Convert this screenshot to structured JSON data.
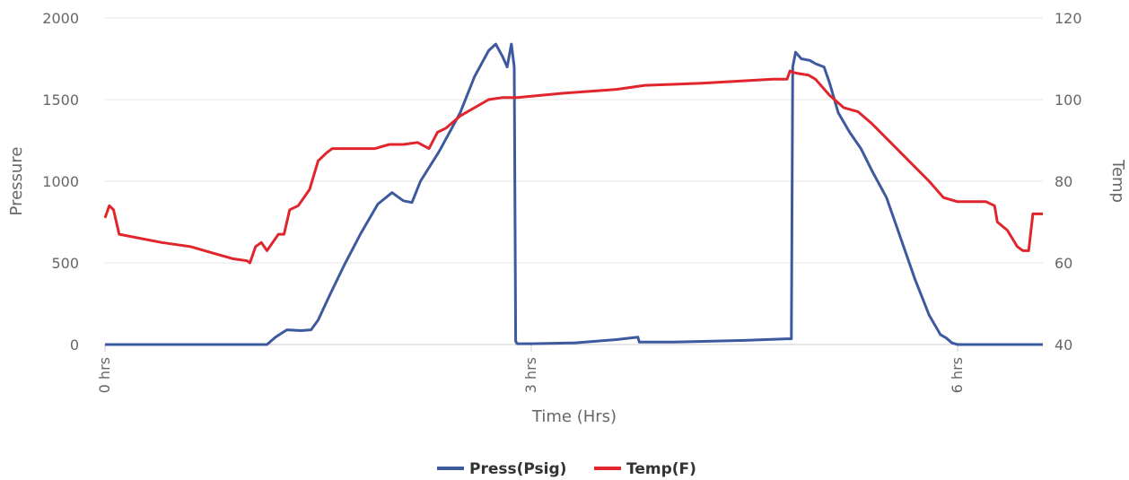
{
  "chart_data": {
    "type": "line",
    "title": "",
    "xlabel": "Time (Hrs)",
    "ylabel_left": "Pressure",
    "ylabel_right": "Temp",
    "xlim": [
      0,
      6.6
    ],
    "ylim_left": [
      0,
      2000
    ],
    "ylim_right": [
      40,
      120
    ],
    "x_ticks": [
      {
        "value": 0,
        "label": "0 hrs"
      },
      {
        "value": 3,
        "label": "3 hrs"
      },
      {
        "value": 6,
        "label": "6 hrs"
      }
    ],
    "y_ticks_left": [
      {
        "value": 0,
        "label": "0"
      },
      {
        "value": 500,
        "label": "500"
      },
      {
        "value": 1000,
        "label": "1000"
      },
      {
        "value": 1500,
        "label": "1500"
      },
      {
        "value": 2000,
        "label": "2000"
      }
    ],
    "y_ticks_right": [
      {
        "value": 40,
        "label": "40"
      },
      {
        "value": 60,
        "label": "60"
      },
      {
        "value": 80,
        "label": "80"
      },
      {
        "value": 100,
        "label": "100"
      },
      {
        "value": 120,
        "label": "120"
      }
    ],
    "grid": true,
    "legend_position": "bottom-center",
    "series": [
      {
        "name": "Press(Psig)",
        "axis": "left",
        "color": "#3d5a9e",
        "x": [
          0,
          1.14,
          1.2,
          1.28,
          1.38,
          1.45,
          1.5,
          1.58,
          1.68,
          1.8,
          1.92,
          2.02,
          2.1,
          2.16,
          2.22,
          2.35,
          2.5,
          2.6,
          2.7,
          2.75,
          2.8,
          2.83,
          2.86,
          2.88,
          2.89,
          2.9,
          3.0,
          3.3,
          3.6,
          3.75,
          3.76,
          4.0,
          4.5,
          4.8,
          4.83,
          4.84,
          4.86,
          4.9,
          4.96,
          5.0,
          5.06,
          5.1,
          5.16,
          5.24,
          5.32,
          5.4,
          5.5,
          5.6,
          5.7,
          5.8,
          5.88,
          5.92,
          5.96,
          6.0,
          6.3,
          6.6
        ],
        "values": [
          0,
          0,
          45,
          90,
          85,
          90,
          150,
          300,
          480,
          680,
          860,
          930,
          880,
          870,
          1000,
          1180,
          1420,
          1640,
          1800,
          1840,
          1760,
          1700,
          1840,
          1700,
          20,
          5,
          5,
          10,
          30,
          45,
          15,
          15,
          25,
          35,
          35,
          1700,
          1790,
          1750,
          1740,
          1720,
          1700,
          1600,
          1420,
          1300,
          1200,
          1060,
          900,
          650,
          400,
          180,
          60,
          40,
          10,
          0,
          0,
          0
        ]
      },
      {
        "name": "Temp(F)",
        "axis": "right",
        "color": "#e0252d",
        "x": [
          0,
          0.03,
          0.06,
          0.1,
          0.4,
          0.6,
          0.8,
          0.9,
          1.0,
          1.02,
          1.06,
          1.1,
          1.14,
          1.18,
          1.22,
          1.26,
          1.3,
          1.36,
          1.44,
          1.5,
          1.56,
          1.6,
          1.7,
          1.8,
          1.9,
          2.0,
          2.1,
          2.2,
          2.28,
          2.34,
          2.4,
          2.5,
          2.6,
          2.7,
          2.8,
          2.9,
          3.2,
          3.6,
          3.8,
          4.2,
          4.7,
          4.8,
          4.82,
          4.86,
          4.95,
          5.0,
          5.1,
          5.2,
          5.3,
          5.4,
          5.6,
          5.8,
          5.9,
          6.0,
          6.2,
          6.26,
          6.28,
          6.35,
          6.42,
          6.46,
          6.5,
          6.53,
          6.56,
          6.6
        ],
        "values": [
          71,
          74,
          73,
          67,
          65,
          64,
          62,
          61,
          60.5,
          60,
          64,
          65,
          63,
          65,
          67,
          67,
          73,
          74,
          78,
          85,
          87,
          88,
          88,
          88,
          88,
          89,
          89,
          89.5,
          88,
          92,
          93,
          96,
          98,
          100,
          100.5,
          100.5,
          101.5,
          102.5,
          103.5,
          104,
          105,
          105,
          107,
          106.5,
          106,
          105,
          101,
          98,
          97,
          94,
          87,
          80,
          76,
          75,
          75,
          74,
          70,
          68,
          64,
          63,
          63,
          72,
          72,
          72
        ]
      }
    ]
  }
}
